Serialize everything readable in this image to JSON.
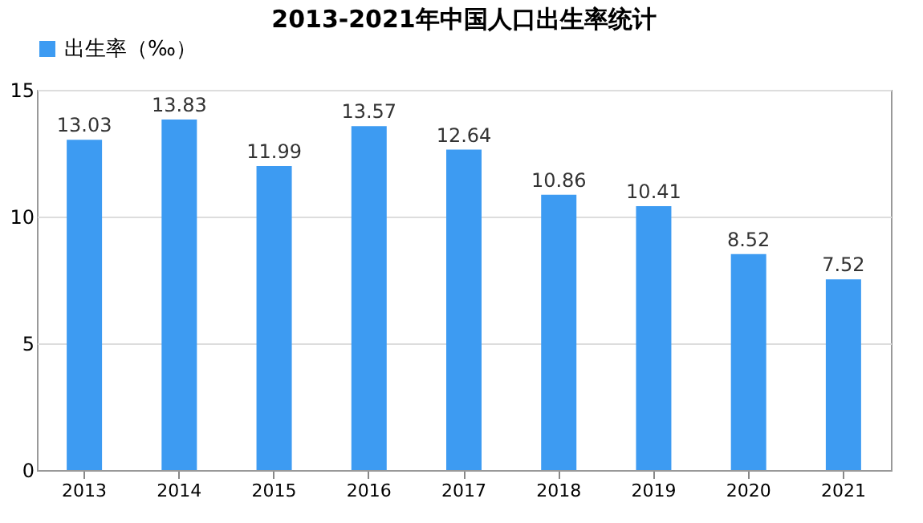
{
  "chart_data": {
    "type": "bar",
    "title": "2013-2021年中国人口出生率统计",
    "categories": [
      "2013",
      "2014",
      "2015",
      "2016",
      "2017",
      "2018",
      "2019",
      "2020",
      "2021"
    ],
    "series": [
      {
        "name": "出生率（‰）",
        "color": "#3d9bf2",
        "values": [
          13.03,
          13.83,
          11.99,
          13.57,
          12.64,
          10.86,
          10.41,
          8.52,
          7.52
        ]
      }
    ],
    "ylim": [
      0,
      15
    ],
    "yticks": [
      0,
      5,
      10,
      15
    ],
    "grid": "y",
    "legend": "top",
    "data_labels": true
  }
}
